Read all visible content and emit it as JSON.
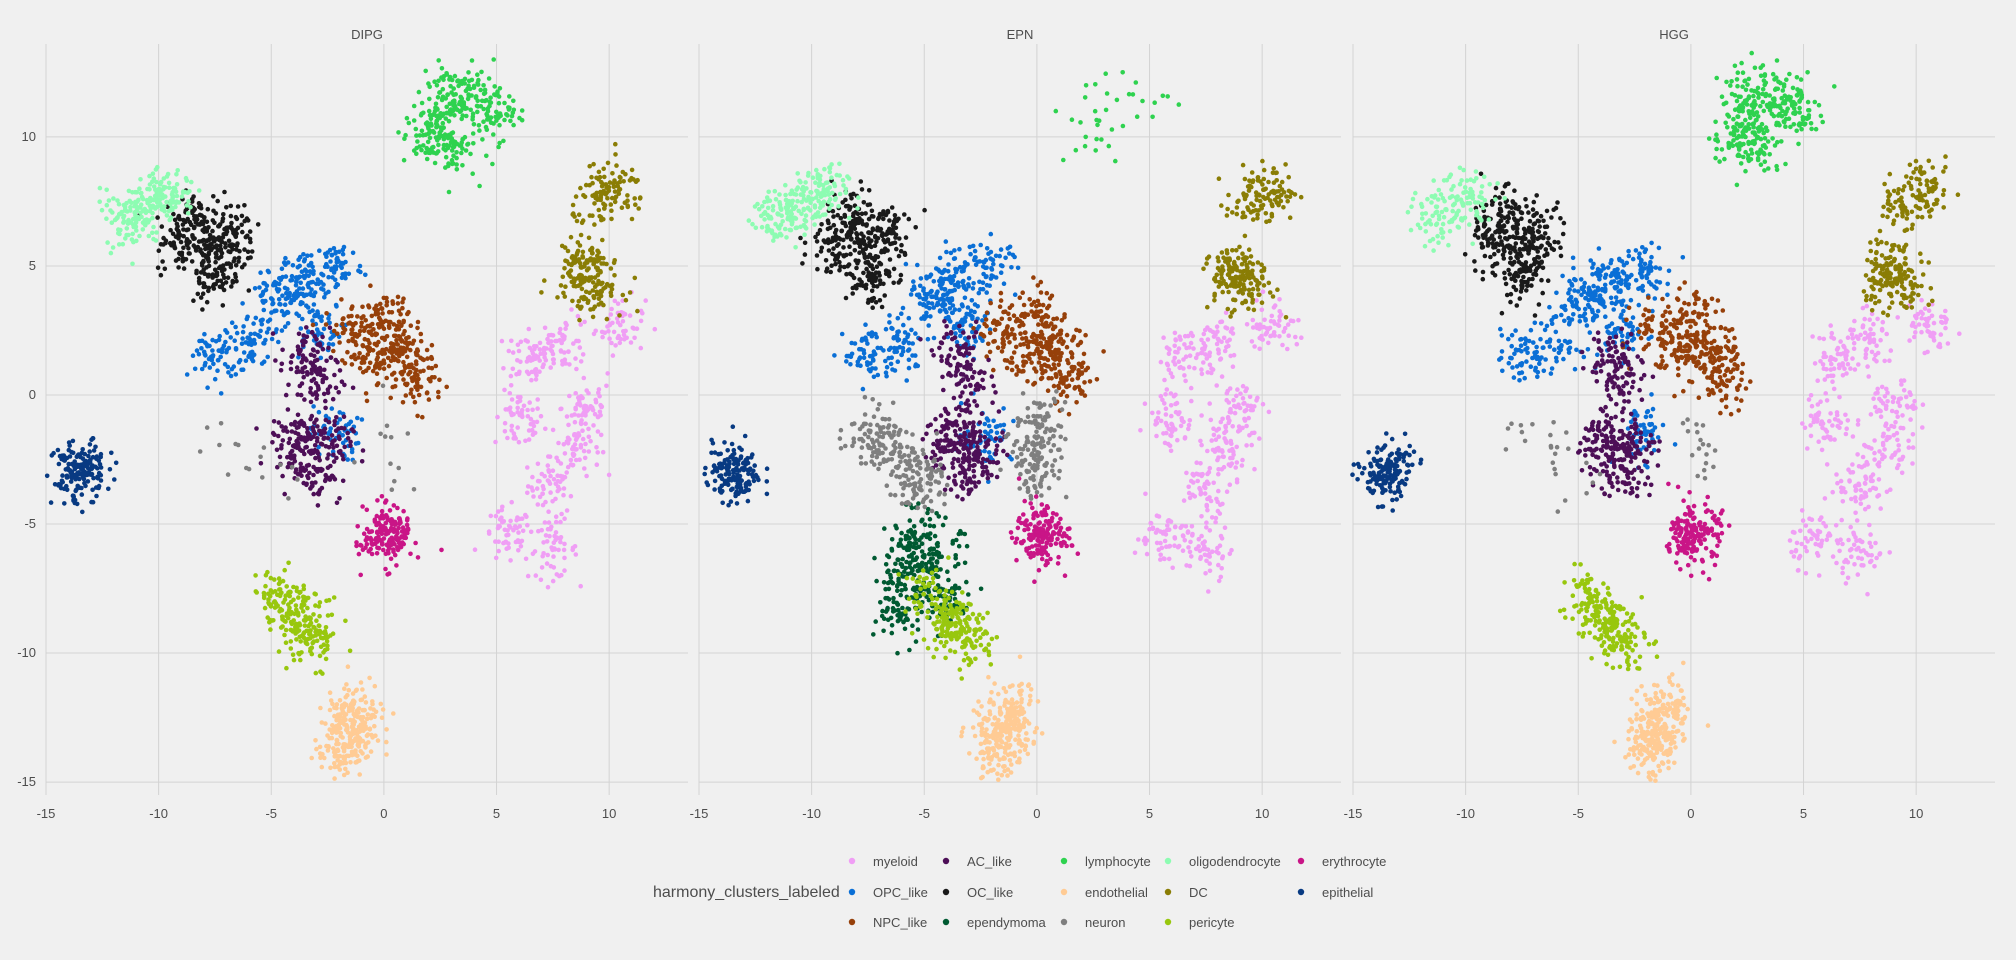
{
  "chart_data": {
    "type": "scatter",
    "x_range": [
      -15,
      13.5
    ],
    "y_range": [
      -15.5,
      13.6
    ],
    "x_ticks": [
      -15,
      -10,
      -5,
      0,
      5,
      10
    ],
    "y_ticks": [
      -15,
      -10,
      -5,
      0,
      5,
      10
    ],
    "x_tick_labels": [
      "-15",
      "-10",
      "-5",
      "0",
      "5",
      "10"
    ],
    "y_tick_labels": [
      "-15",
      "-10",
      "-5",
      "0",
      "5",
      "10"
    ],
    "grid": true,
    "facets": [
      {
        "title": "DIPG"
      },
      {
        "title": "EPN"
      },
      {
        "title": "HGG"
      }
    ],
    "legend": {
      "title": "harmony_clusters_labeled",
      "position": "bottom",
      "items": [
        {
          "name": "myeloid",
          "color": "#f09ef5"
        },
        {
          "name": "OPC_like",
          "color": "#0a6fd6"
        },
        {
          "name": "NPC_like",
          "color": "#96400a"
        },
        {
          "name": "AC_like",
          "color": "#4d0f57"
        },
        {
          "name": "OC_like",
          "color": "#1a1a1a"
        },
        {
          "name": "ependymoma",
          "color": "#005a32"
        },
        {
          "name": "lymphocyte",
          "color": "#2ed24f"
        },
        {
          "name": "endothelial",
          "color": "#ffcb94"
        },
        {
          "name": "neuron",
          "color": "#7f7f7f"
        },
        {
          "name": "oligodendrocyte",
          "color": "#8dfcb2"
        },
        {
          "name": "DC",
          "color": "#8a7d05"
        },
        {
          "name": "pericyte",
          "color": "#98c70e"
        },
        {
          "name": "erythrocyte",
          "color": "#c91587"
        },
        {
          "name": "epithelial",
          "color": "#083a82"
        }
      ]
    },
    "clusters": [
      {
        "label": "myeloid",
        "facets": [
          1,
          1,
          1
        ],
        "points": [
          [
            7.5,
            -3.5
          ],
          [
            6,
            -1
          ],
          [
            6.5,
            1.5
          ],
          [
            8.5,
            -2
          ],
          [
            10.5,
            2.7
          ],
          [
            7.5,
            -6
          ],
          [
            9,
            -0.5
          ],
          [
            5.5,
            -5.5
          ],
          [
            8,
            2
          ]
        ]
      },
      {
        "label": "OPC_like",
        "facets": [
          1,
          1,
          1
        ],
        "points": [
          [
            -5,
            3.5
          ],
          [
            -3.5,
            4.5
          ],
          [
            -2,
            5
          ],
          [
            -6,
            2
          ],
          [
            -3,
            2.5
          ],
          [
            -2.2,
            -1.5
          ],
          [
            -4,
            4
          ],
          [
            -7.5,
            1.5
          ]
        ]
      },
      {
        "label": "NPC_like",
        "facets": [
          1,
          1,
          1
        ],
        "points": [
          [
            -1.5,
            2.5
          ],
          [
            -0.5,
            1.5
          ],
          [
            0.5,
            2
          ],
          [
            1,
            1.5
          ],
          [
            0,
            3
          ],
          [
            1.5,
            0.5
          ]
        ]
      },
      {
        "label": "AC_like",
        "facets": [
          1,
          1,
          1
        ],
        "points": [
          [
            -3.5,
            -1.5
          ],
          [
            -3,
            0.5
          ],
          [
            -4,
            -2
          ],
          [
            -3,
            -3
          ],
          [
            -2.5,
            -2
          ],
          [
            -3.5,
            1.5
          ]
        ]
      },
      {
        "label": "OC_like",
        "facets": [
          1,
          1,
          1
        ],
        "points": [
          [
            -8,
            6
          ],
          [
            -7,
            5.5
          ],
          [
            -8.5,
            7
          ],
          [
            -9,
            5.8
          ],
          [
            -7.5,
            4.5
          ],
          [
            -6.8,
            6.5
          ]
        ]
      },
      {
        "label": "ependymoma",
        "facets": [
          0,
          1,
          0
        ],
        "points": [
          [
            -5,
            -7
          ],
          [
            -6,
            -8.5
          ],
          [
            -4.5,
            -6
          ],
          [
            -5.5,
            -5.5
          ],
          [
            -4,
            -8
          ],
          [
            -6.2,
            -7
          ]
        ]
      },
      {
        "label": "lymphocyte",
        "facets": [
          1,
          0.1,
          1
        ],
        "points": [
          [
            2.5,
            10.8
          ],
          [
            4,
            11.5
          ],
          [
            2,
            10
          ],
          [
            5,
            11
          ],
          [
            3,
            9.5
          ],
          [
            2.8,
            11.8
          ]
        ]
      },
      {
        "label": "endothelial",
        "facets": [
          1,
          1,
          1
        ],
        "points": [
          [
            -1.8,
            -12.5
          ],
          [
            -1.2,
            -13
          ],
          [
            -2,
            -13.8
          ],
          [
            -1,
            -12.2
          ],
          [
            -1.5,
            -13.5
          ]
        ]
      },
      {
        "label": "neuron",
        "facets": [
          0.08,
          1,
          0.1
        ],
        "points": [
          [
            -7.5,
            -1.5
          ],
          [
            -6.5,
            -2
          ],
          [
            -5.5,
            -2.8
          ],
          [
            -5,
            -3.5
          ],
          [
            0,
            -2
          ],
          [
            0,
            -3
          ],
          [
            0.2,
            -1
          ]
        ]
      },
      {
        "label": "oligodendrocyte",
        "facets": [
          1,
          1,
          0.6
        ],
        "points": [
          [
            -11,
            7
          ],
          [
            -10,
            7.6
          ],
          [
            -11.5,
            6.8
          ],
          [
            -9.5,
            7.8
          ]
        ]
      },
      {
        "label": "DC",
        "facets": [
          1,
          1,
          1
        ],
        "points": [
          [
            9.5,
            7.5
          ],
          [
            10.5,
            7.9
          ],
          [
            9,
            5
          ],
          [
            8.5,
            4.6
          ],
          [
            9.5,
            4.2
          ]
        ]
      },
      {
        "label": "pericyte",
        "facets": [
          1,
          1,
          1
        ],
        "points": [
          [
            -3.5,
            -9
          ],
          [
            -3,
            -9.5
          ],
          [
            -4,
            -8.5
          ],
          [
            -4.8,
            -7.8
          ]
        ]
      },
      {
        "label": "erythrocyte",
        "facets": [
          1,
          1,
          1
        ],
        "points": [
          [
            0.2,
            -5.5
          ],
          [
            0.3,
            -5.2
          ],
          [
            0,
            -5.6
          ]
        ]
      },
      {
        "label": "epithelial",
        "facets": [
          1,
          1,
          1
        ],
        "points": [
          [
            -13.5,
            -3
          ],
          [
            -13.7,
            -3.2
          ],
          [
            -13.3,
            -2.9
          ]
        ]
      }
    ]
  }
}
